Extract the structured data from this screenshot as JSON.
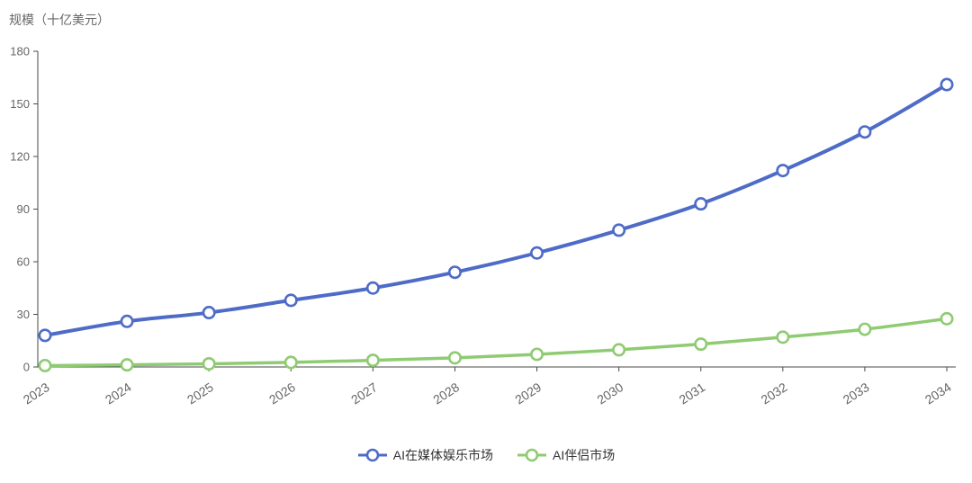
{
  "chart_data": {
    "type": "line",
    "title": "",
    "ylabel": "规模（十亿美元）",
    "xlabel": "",
    "categories": [
      "2023",
      "2024",
      "2025",
      "2026",
      "2027",
      "2028",
      "2029",
      "2030",
      "2031",
      "2032",
      "2033",
      "2034"
    ],
    "series": [
      {
        "name": "AI在媒体娱乐市场",
        "color": "#4e6bc8",
        "values": [
          18,
          26,
          31,
          38,
          45,
          54,
          65,
          78,
          93,
          112,
          134,
          161
        ]
      },
      {
        "name": "AI伴侣市场",
        "color": "#8fcb72",
        "values": [
          0.8,
          1.2,
          1.8,
          2.6,
          3.8,
          5.2,
          7.2,
          9.8,
          13,
          17,
          21.5,
          27.5
        ]
      }
    ],
    "ylim": [
      0,
      180
    ],
    "yticks": [
      0,
      30,
      60,
      90,
      120,
      150,
      180
    ],
    "grid": false,
    "legend_position": "bottom",
    "axis_text_color": "#666666",
    "axis_line_color": "#4a4a4a"
  }
}
